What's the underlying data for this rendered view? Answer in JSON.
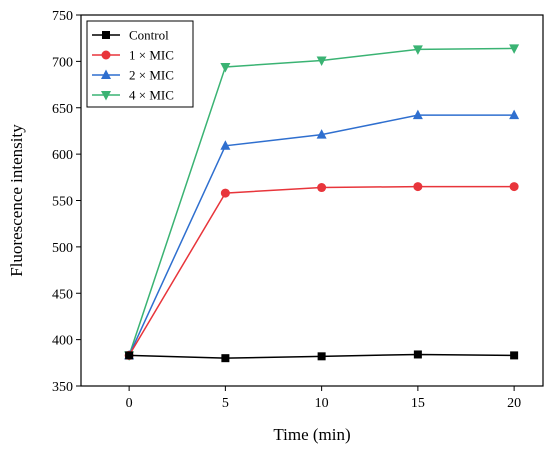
{
  "chart_data": {
    "type": "line",
    "title": "",
    "xlabel": "Time (min)",
    "ylabel": "Fluorescence intensity",
    "x": [
      0,
      5,
      10,
      15,
      20
    ],
    "xlim": [
      -2.5,
      21.5
    ],
    "ylim": [
      350,
      750
    ],
    "xticks": [
      0,
      5,
      10,
      15,
      20
    ],
    "yticks": [
      350,
      400,
      450,
      500,
      550,
      600,
      650,
      700,
      750
    ],
    "grid": false,
    "legend_position": "top-left",
    "series": [
      {
        "name": "Control",
        "color": "#000000",
        "marker": "square",
        "values": [
          383,
          380,
          382,
          384,
          383
        ]
      },
      {
        "name": "1 × MIC",
        "color": "#e8353b",
        "marker": "circle",
        "values": [
          383,
          558,
          564,
          565,
          565
        ]
      },
      {
        "name": "2 × MIC",
        "color": "#2f6fcf",
        "marker": "triangle-up",
        "values": [
          383,
          609,
          621,
          642,
          642
        ]
      },
      {
        "name": "4 × MIC",
        "color": "#3ab373",
        "marker": "triangle-down",
        "values": [
          383,
          694,
          701,
          713,
          714
        ]
      }
    ]
  }
}
